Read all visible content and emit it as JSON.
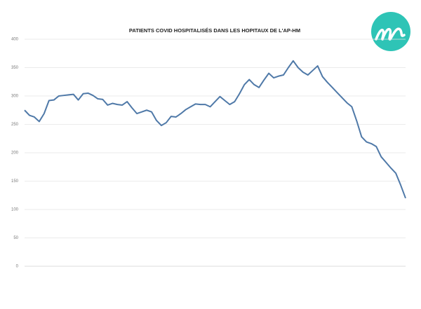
{
  "chart_data": {
    "type": "line",
    "title": "PATIENTS COVID HOSPITALISÉS DANS LES HOPITAUX DE L'AP-HM",
    "categories": [
      null,
      null,
      null,
      null,
      null,
      null,
      null,
      null,
      null,
      null,
      null,
      null,
      null,
      null,
      null,
      null,
      null,
      null,
      null,
      null,
      null,
      null,
      null,
      null,
      null,
      null,
      null,
      null,
      null,
      null,
      null,
      null,
      null,
      null,
      null,
      null,
      null,
      null,
      null,
      null,
      null,
      null,
      null,
      null,
      null,
      null,
      null,
      null,
      null,
      null,
      null,
      null,
      null,
      null,
      null,
      null,
      null,
      null,
      null,
      null,
      null,
      null,
      null,
      null,
      null,
      null,
      null,
      null,
      null,
      null,
      null,
      null,
      null,
      null,
      null,
      null,
      null,
      null,
      null
    ],
    "series": [
      {
        "name": null,
        "color": "#4f79a8",
        "values": [
          275,
          266,
          263,
          255,
          269,
          292,
          293,
          300,
          301,
          302,
          303,
          293,
          304,
          305,
          301,
          295,
          294,
          284,
          287,
          285,
          284,
          290,
          279,
          269,
          272,
          275,
          272,
          257,
          248,
          253,
          264,
          263,
          269,
          276,
          281,
          286,
          285,
          285,
          281,
          290,
          299,
          292,
          285,
          290,
          304,
          320,
          329,
          320,
          315,
          328,
          340,
          332,
          335,
          337,
          350,
          362,
          350,
          342,
          337,
          345,
          353,
          334,
          324,
          315,
          306,
          297,
          288,
          281,
          256,
          228,
          219,
          216,
          211,
          193,
          183,
          173,
          164,
          143,
          120
        ]
      }
    ],
    "ylim": [
      0,
      400
    ],
    "yticks": [
      0,
      50,
      100,
      150,
      200,
      250,
      300,
      350,
      400
    ],
    "grid": true
  }
}
